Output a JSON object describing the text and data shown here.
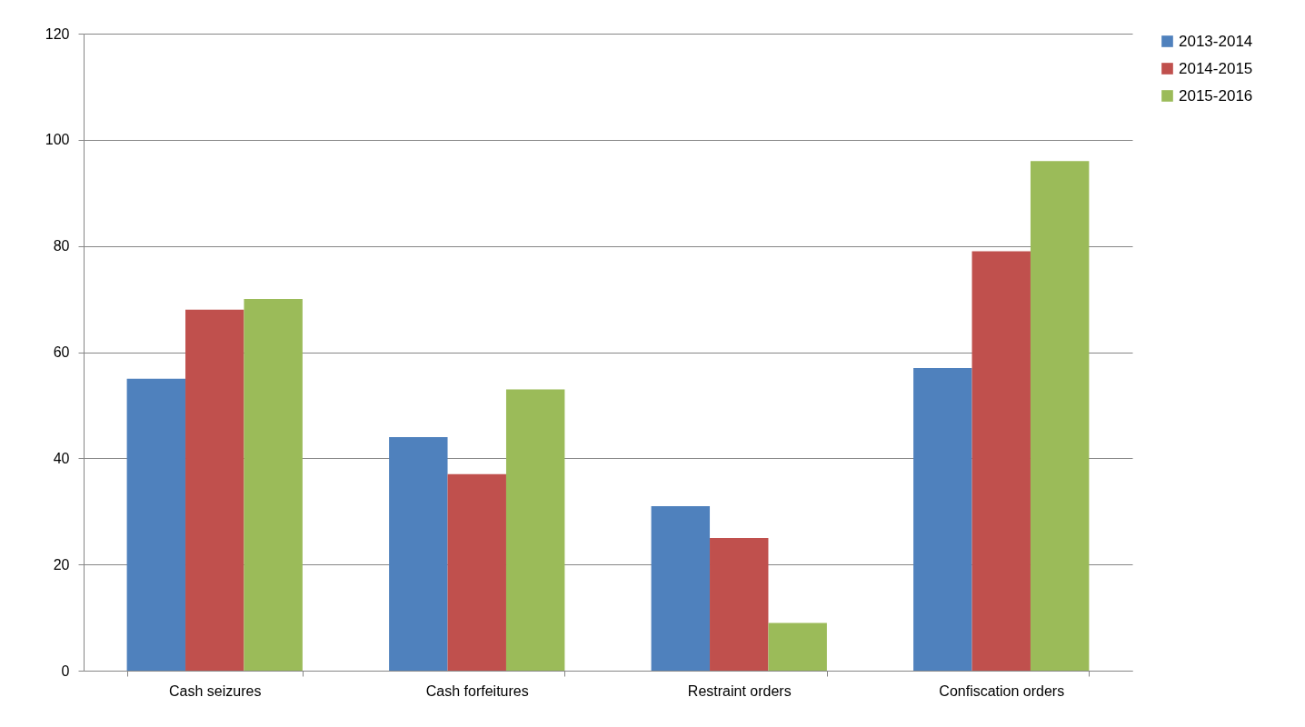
{
  "chart_data": {
    "type": "bar",
    "categories": [
      "Cash seizures",
      "Cash forfeitures",
      "Restraint orders",
      "Confiscation orders"
    ],
    "series": [
      {
        "name": "2013-2014",
        "color": "#4f81bd",
        "values": [
          55,
          44,
          31,
          57
        ]
      },
      {
        "name": "2014-2015",
        "color": "#c0504d",
        "values": [
          68,
          37,
          25,
          79
        ]
      },
      {
        "name": "2015-2016",
        "color": "#9bbb59",
        "values": [
          70,
          53,
          9,
          96
        ]
      }
    ],
    "ylim": [
      0,
      120
    ],
    "yticks": [
      0,
      20,
      40,
      60,
      80,
      100,
      120
    ],
    "grid": "y",
    "legend": "right"
  }
}
